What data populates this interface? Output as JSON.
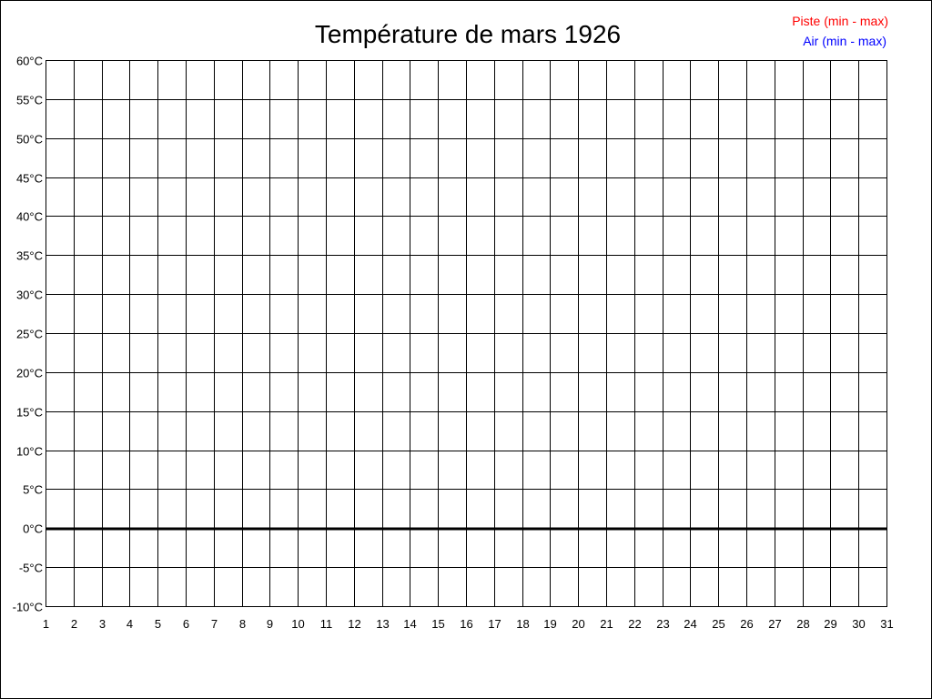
{
  "chart_data": {
    "type": "line",
    "title": "Température de mars 1926",
    "legend": {
      "placement": "top-right",
      "entries": [
        {
          "label": "Piste (min - max)",
          "color": "#ff0000"
        },
        {
          "label": "Air (min - max)",
          "color": "#0000ff"
        }
      ]
    },
    "x": [
      1,
      2,
      3,
      4,
      5,
      6,
      7,
      8,
      9,
      10,
      11,
      12,
      13,
      14,
      15,
      16,
      17,
      18,
      19,
      20,
      21,
      22,
      23,
      24,
      25,
      26,
      27,
      28,
      29,
      30,
      31
    ],
    "x_tick_labels": [
      "1",
      "2",
      "3",
      "4",
      "5",
      "6",
      "7",
      "8",
      "9",
      "10",
      "11",
      "12",
      "13",
      "14",
      "15",
      "16",
      "17",
      "18",
      "19",
      "20",
      "21",
      "22",
      "23",
      "24",
      "25",
      "26",
      "27",
      "28",
      "29",
      "30",
      "31"
    ],
    "xlim": [
      1,
      31
    ],
    "ylim": [
      -10,
      60
    ],
    "y_ticks": [
      -10,
      -5,
      0,
      5,
      10,
      15,
      20,
      25,
      30,
      35,
      40,
      45,
      50,
      55,
      60
    ],
    "y_tick_labels": [
      "-10°C",
      "-5°C",
      "0°C",
      "5°C",
      "10°C",
      "15°C",
      "20°C",
      "25°C",
      "30°C",
      "35°C",
      "40°C",
      "45°C",
      "50°C",
      "55°C",
      "60°C"
    ],
    "grid": true,
    "zero_line_emphasized": true,
    "series": []
  }
}
